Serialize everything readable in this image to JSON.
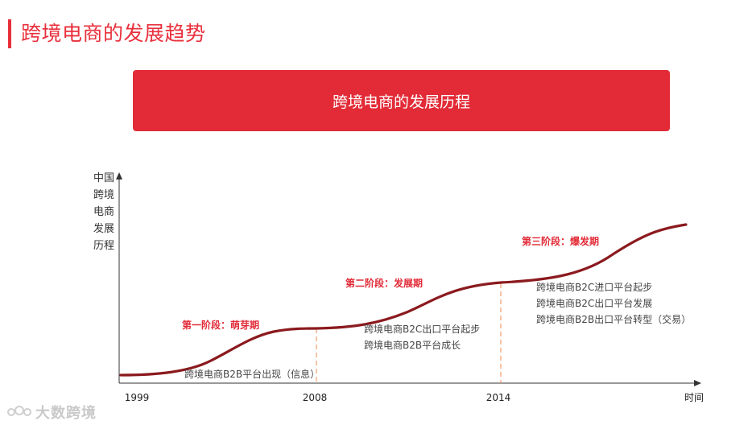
{
  "page_title": "跨境电商的发展趋势",
  "banner": "跨境电商的发展历程",
  "y_axis_label": [
    "中国",
    "跨境",
    "电商",
    "发展",
    "历程"
  ],
  "x_axis_end_label": "时间",
  "ticks": [
    "1999",
    "2008",
    "2014"
  ],
  "stages": [
    {
      "label": "第一阶段：萌芽期",
      "notes": [
        "跨境电商B2B平台出现（信息）"
      ]
    },
    {
      "label": "第二阶段：发展期",
      "notes": [
        "跨境电商B2C出口平台起步",
        "跨境电商B2B平台成长"
      ]
    },
    {
      "label": "第三阶段：爆发期",
      "notes": [
        "跨境电商B2C进口平台起步",
        "跨境电商B2C出口平台发展",
        "跨境电商B2B出口平台转型（交易）"
      ]
    }
  ],
  "watermark": "大数跨境",
  "colors": {
    "accent": "#e22b37",
    "curve": "#8b1a1e",
    "divider": "#f0a070"
  }
}
